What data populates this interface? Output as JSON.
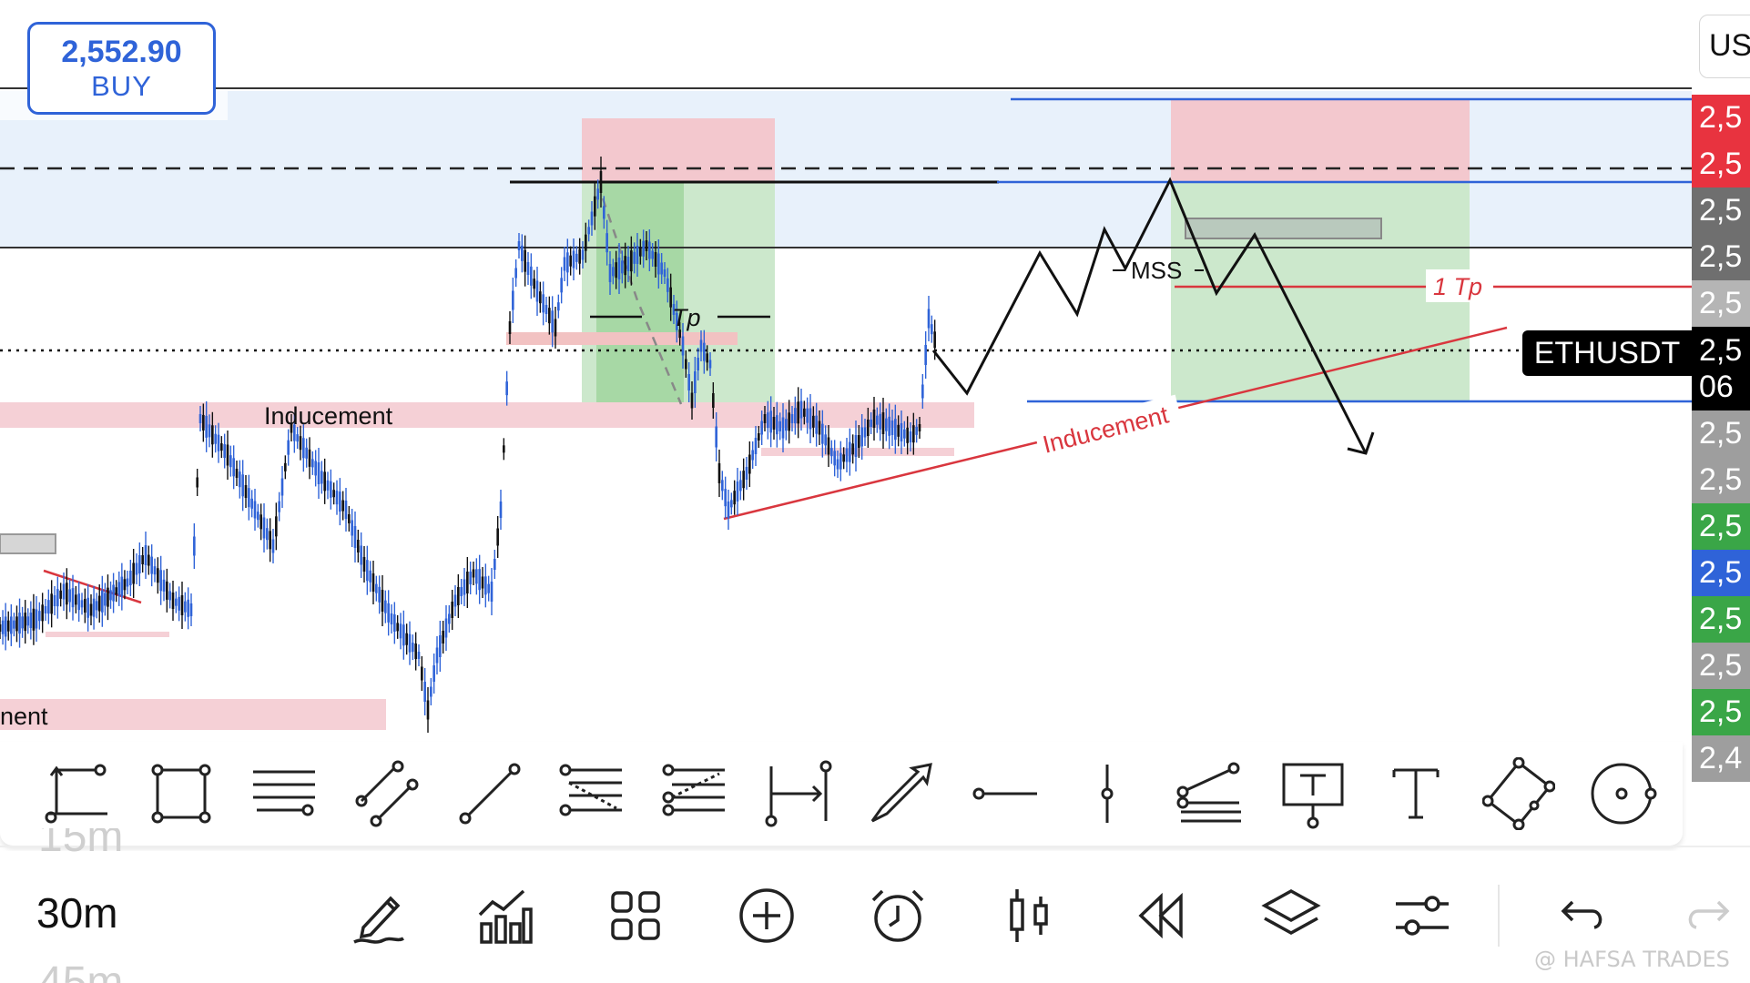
{
  "order_button": {
    "price": "2,552.90",
    "side": "BUY"
  },
  "currency_selector": {
    "label": "US"
  },
  "symbol": {
    "name": "ETHUSDT"
  },
  "price_axis": [
    {
      "text": "2,5",
      "color": "#e8333f"
    },
    {
      "text": "2,5",
      "color": "#e8333f"
    },
    {
      "text": "2,5",
      "color": "#6f6f6f"
    },
    {
      "text": "2,5",
      "color": "#6f6f6f"
    },
    {
      "text": "2,5",
      "color": "#b5b5b5"
    },
    {
      "text": "2,5",
      "sub": "06",
      "color": "#000000",
      "current": true
    },
    {
      "text": "2,5",
      "color": "#9e9e9e"
    },
    {
      "text": "2,5",
      "color": "#9e9e9e"
    },
    {
      "text": "2,5",
      "color": "#3aa647"
    },
    {
      "text": "2,5",
      "color": "#2f63d8"
    },
    {
      "text": "2,5",
      "color": "#3aa647"
    },
    {
      "text": "2,5",
      "color": "#9e9e9e"
    },
    {
      "text": "2,5",
      "color": "#3aa647"
    },
    {
      "text": "2,4",
      "color": "#9e9e9e"
    }
  ],
  "chart_annotations": {
    "inducement_box_label": "Inducement",
    "inducement_trendline_label": "Inducement",
    "left_zone_label": "nent",
    "tp_label": "Tp",
    "mss_label": "MSS",
    "one_tp_label": "1 Tp"
  },
  "drawing_tools": [
    "trend-angle-tool-icon",
    "rectangle-tool-icon",
    "horizontal-lines-tool-icon",
    "parallel-channel-tool-icon",
    "trend-line-tool-icon",
    "fib-retracement-tool-icon",
    "fib-extension-tool-icon",
    "date-range-tool-icon",
    "arrow-tool-icon",
    "horizontal-ray-tool-icon",
    "vertical-line-tool-icon",
    "fib-channel-tool-icon",
    "callout-text-tool-icon",
    "text-tool-icon",
    "rotated-rectangle-tool-icon",
    "circle-tool-icon"
  ],
  "timeframes": {
    "previous": "15m",
    "current": "30m",
    "next": "45m"
  },
  "bottom_toolbar": [
    "draw-pen-icon",
    "indicators-icon",
    "layout-grid-icon",
    "add-circle-icon",
    "alarm-clock-icon",
    "candles-icon",
    "replay-icon",
    "layers-icon",
    "settings-sliders-icon"
  ],
  "watermark": "@ HAFSA TRADES",
  "colors": {
    "accent_blue": "#2f63d8",
    "sell_zone": "#f3c8ce",
    "buy_zone": "#cce8cc",
    "premium_zone": "#e8f1fb"
  }
}
